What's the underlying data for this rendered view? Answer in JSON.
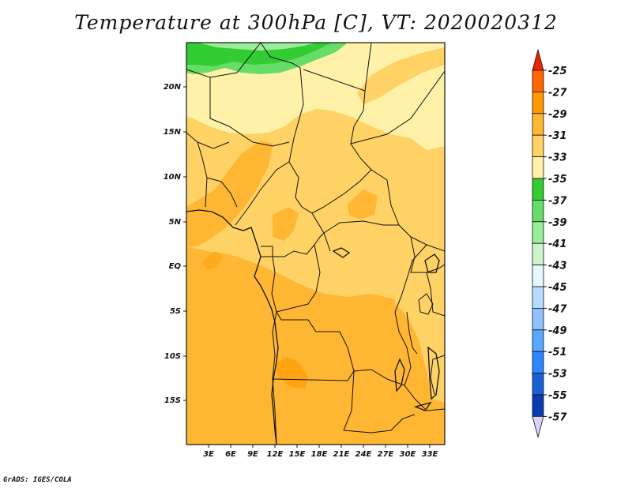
{
  "title": "Temperature at 300hPa [C], VT: 2020020312",
  "credit": "GrADS: IGES/COLA",
  "lat_labels": [
    "20N",
    "15N",
    "10N",
    "5N",
    "EQ",
    "5S",
    "10S",
    "15S"
  ],
  "lon_labels": [
    "3E",
    "6E",
    "9E",
    "12E",
    "15E",
    "18E",
    "21E",
    "24E",
    "27E",
    "30E",
    "33E"
  ],
  "colorbar": {
    "labels": [
      "-25",
      "-27",
      "-29",
      "-31",
      "-33",
      "-35",
      "-37",
      "-39",
      "-41",
      "-43",
      "-45",
      "-47",
      "-49",
      "-51",
      "-53",
      "-55",
      "-57"
    ],
    "colors": [
      "#ff6600",
      "#ff9a00",
      "#ffb733",
      "#ffd266",
      "#fff2a8",
      "#33cc33",
      "#66dd66",
      "#99ee99",
      "#ccf5cc",
      "#e8f8ff",
      "#b8dcff",
      "#8fc2ff",
      "#5aa8ff",
      "#2f84ff",
      "#1a5fd6",
      "#0a3cb0"
    ],
    "top_color": "#ee2200",
    "bottom_color": "#d8d4ff"
  }
}
